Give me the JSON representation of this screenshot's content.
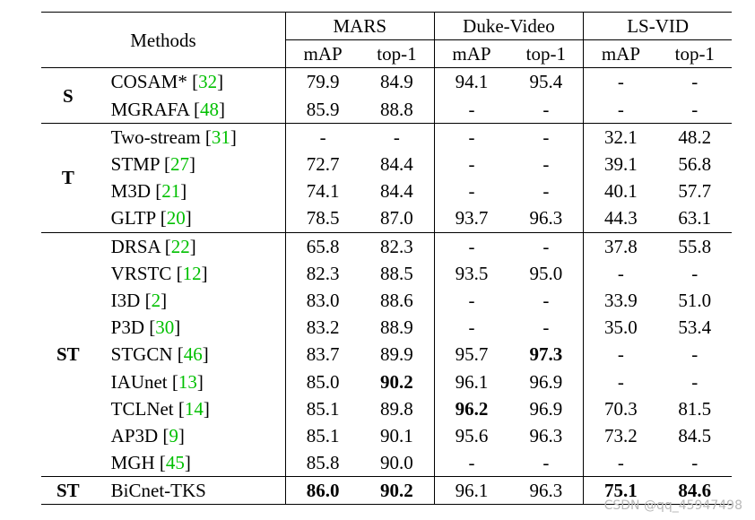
{
  "table": {
    "methods_header": "Methods",
    "datasets": [
      "MARS",
      "Duke-Video",
      "LS-VID"
    ],
    "metrics": [
      "mAP",
      "top-1",
      "mAP",
      "top-1",
      "mAP",
      "top-1"
    ],
    "groups": [
      {
        "label": "S",
        "rows": [
          {
            "method": "COSAM*",
            "ref": "32",
            "values": [
              "79.9",
              "84.9",
              "94.1",
              "95.4",
              "-",
              "-"
            ],
            "bold": []
          },
          {
            "method": "MGRAFA",
            "ref": "48",
            "values": [
              "85.9",
              "88.8",
              "-",
              "-",
              "-",
              "-"
            ],
            "bold": []
          }
        ]
      },
      {
        "label": "T",
        "rows": [
          {
            "method": "Two-stream",
            "ref": "31",
            "values": [
              "-",
              "-",
              "-",
              "-",
              "32.1",
              "48.2"
            ],
            "bold": []
          },
          {
            "method": "STMP",
            "ref": "27",
            "values": [
              "72.7",
              "84.4",
              "-",
              "-",
              "39.1",
              "56.8"
            ],
            "bold": []
          },
          {
            "method": "M3D",
            "ref": "21",
            "values": [
              "74.1",
              "84.4",
              "-",
              "-",
              "40.1",
              "57.7"
            ],
            "bold": []
          },
          {
            "method": "GLTP",
            "ref": "20",
            "values": [
              "78.5",
              "87.0",
              "93.7",
              "96.3",
              "44.3",
              "63.1"
            ],
            "bold": []
          }
        ]
      },
      {
        "label": "ST",
        "rows": [
          {
            "method": "DRSA",
            "ref": "22",
            "values": [
              "65.8",
              "82.3",
              "-",
              "-",
              "37.8",
              "55.8"
            ],
            "bold": []
          },
          {
            "method": "VRSTC",
            "ref": "12",
            "values": [
              "82.3",
              "88.5",
              "93.5",
              "95.0",
              "-",
              "-"
            ],
            "bold": []
          },
          {
            "method": "I3D",
            "ref": "2",
            "values": [
              "83.0",
              "88.6",
              "-",
              "-",
              "33.9",
              "51.0"
            ],
            "bold": []
          },
          {
            "method": "P3D",
            "ref": "30",
            "values": [
              "83.2",
              "88.9",
              "-",
              "-",
              "35.0",
              "53.4"
            ],
            "bold": []
          },
          {
            "method": "STGCN",
            "ref": "46",
            "values": [
              "83.7",
              "89.9",
              "95.7",
              "97.3",
              "-",
              "-"
            ],
            "bold": [
              3
            ]
          },
          {
            "method": "IAUnet",
            "ref": "13",
            "values": [
              "85.0",
              "90.2",
              "96.1",
              "96.9",
              "-",
              "-"
            ],
            "bold": [
              1
            ]
          },
          {
            "method": "TCLNet",
            "ref": "14",
            "values": [
              "85.1",
              "89.8",
              "96.2",
              "96.9",
              "70.3",
              "81.5"
            ],
            "bold": [
              2
            ]
          },
          {
            "method": "AP3D",
            "ref": "9",
            "values": [
              "85.1",
              "90.1",
              "95.6",
              "96.3",
              "73.2",
              "84.5"
            ],
            "bold": []
          },
          {
            "method": "MGH",
            "ref": "45",
            "values": [
              "85.8",
              "90.0",
              "-",
              "-",
              "-",
              "-"
            ],
            "bold": []
          }
        ]
      },
      {
        "label": "ST",
        "rows": [
          {
            "method": "BiCnet-TKS",
            "ref": "",
            "values": [
              "86.0",
              "90.2",
              "96.1",
              "96.3",
              "75.1",
              "84.6"
            ],
            "bold": [
              0,
              1,
              4,
              5
            ]
          }
        ]
      }
    ]
  },
  "watermark": "CSDN @qq_45947498"
}
